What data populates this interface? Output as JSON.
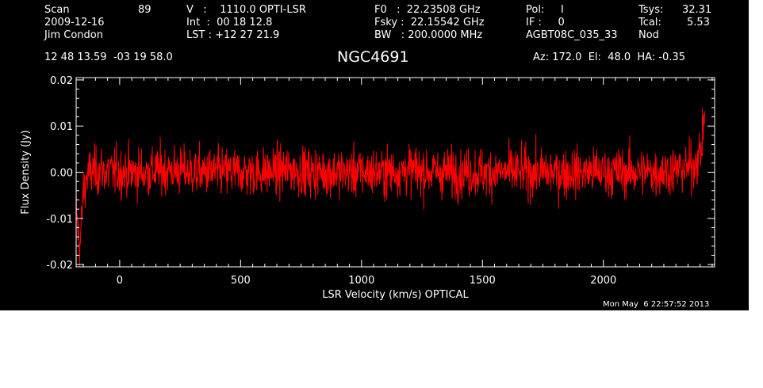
{
  "header": {
    "scan_label": "Scan",
    "scan_number": "89",
    "date": "2009-12-16",
    "observer": "Jim Condon",
    "velocity": "V   :    1110.0 OPTI-LSR",
    "integration": "Int  :  00 18 12.8",
    "lst": "LST : +12 27 21.9",
    "f0": "F0   :  22.23508 GHz",
    "fsky": "Fsky :  22.15542 GHz",
    "bw": "BW   : 200.0000 MHz",
    "pol": "Pol:     I",
    "if": "IF :     0",
    "project": "AGBT08C_035_33",
    "tsys_label": "Tsys:",
    "tsys_value": "32.31",
    "tcal_label": "Tcal:",
    "tcal_value": "5.53",
    "mode": "Nod",
    "coords": "12 48 13.59  -03 19 58.0",
    "object": "NGC4691",
    "azel": "Az: 172.0  El:  48.0  HA: -0.35"
  },
  "timestamp": "Mon May  6 22:57:52 2013",
  "colors": {
    "background": "#000000",
    "trace": "#ff0000",
    "axes": "#ffffff"
  },
  "chart_data": {
    "type": "line",
    "xlabel": "LSR Velocity (km/s) OPTICAL",
    "ylabel": "Flux Density (Jy)",
    "xlim": [
      -180,
      2460
    ],
    "ylim": [
      -0.0205,
      0.0205
    ],
    "x_ticks": [
      0,
      500,
      1000,
      1500,
      2000
    ],
    "x_tick_labels": [
      "0",
      "500",
      "1000",
      "1500",
      "2000"
    ],
    "y_ticks": [
      -0.02,
      -0.01,
      0.0,
      0.01,
      0.02
    ],
    "y_tick_labels": [
      "-0.02",
      "-0.01",
      "0.00",
      "0.01",
      "0.02"
    ],
    "grid": false,
    "series": [
      {
        "color": "#ff0000",
        "x": [
          -180,
          -165,
          -150,
          -135,
          -120,
          -100,
          -80,
          -50,
          0,
          100,
          200,
          300,
          400,
          500,
          600,
          700,
          800,
          900,
          1000,
          1100,
          1200,
          1300,
          1400,
          1500,
          1600,
          1700,
          1800,
          1900,
          2000,
          2100,
          2200,
          2300,
          2350,
          2380,
          2400,
          2410,
          2420
        ],
        "y": [
          -0.008,
          -0.017,
          -0.004,
          -0.001,
          0.0,
          0.0,
          0.0005,
          0.0,
          0.0,
          0.0,
          0.0005,
          0.0,
          0.0,
          0.0,
          0.0,
          0.0005,
          0.0,
          0.0,
          0.0,
          0.0,
          0.0005,
          0.0,
          0.0,
          0.0,
          0.0,
          0.0,
          0.0,
          0.0,
          0.0,
          0.0,
          0.0,
          0.0005,
          0.001,
          0.002,
          0.004,
          0.007,
          0.015
        ],
        "noise_rms": 0.0035
      }
    ]
  }
}
